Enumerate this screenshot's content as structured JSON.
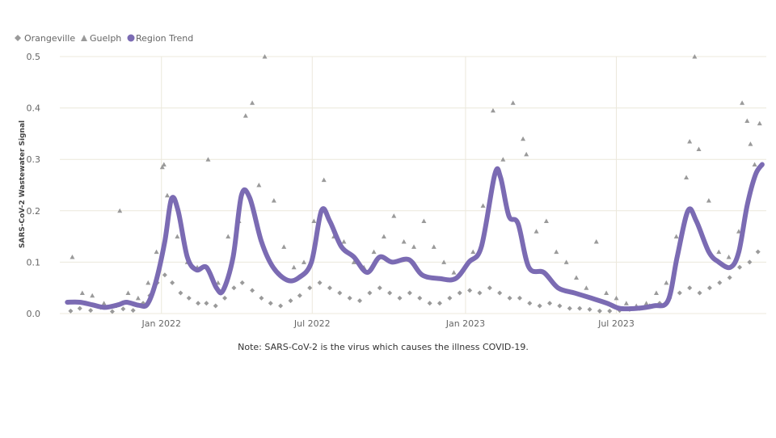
{
  "chart_data": {
    "type": "scatter",
    "ylabel": "SARS-CoV-2 Wastewater Signal",
    "xlabel": "",
    "ylim": [
      0,
      0.5
    ],
    "xlim": [
      "2021-09-01",
      "2023-12-28"
    ],
    "y_ticks": [
      "0.0",
      "0.1",
      "0.2",
      "0.3",
      "0.4",
      "0.5"
    ],
    "x_ticks": [
      {
        "date": "2022-01-01",
        "label": "Jan 2022"
      },
      {
        "date": "2022-07-01",
        "label": "Jul 2022"
      },
      {
        "date": "2023-01-01",
        "label": "Jan 2023"
      },
      {
        "date": "2023-07-01",
        "label": "Jul 2023"
      }
    ],
    "grid": true,
    "legend_position": "top-left",
    "note": "Note: SARS-CoV-2 is the virus which causes the illness COVID-19.",
    "colors": {
      "trend": "#7b6bb3",
      "markers": "#9a9a9a",
      "grid": "#ece8dc",
      "axis_text": "#666666"
    },
    "series": [
      {
        "name": "Orangeville",
        "marker": "diamond",
        "points": [
          [
            "2021-09-14",
            0.005
          ],
          [
            "2021-09-25",
            0.01
          ],
          [
            "2021-10-08",
            0.006
          ],
          [
            "2021-10-20",
            0.012
          ],
          [
            "2021-11-03",
            0.004
          ],
          [
            "2021-11-16",
            0.009
          ],
          [
            "2021-11-28",
            0.006
          ],
          [
            "2021-12-10",
            0.02
          ],
          [
            "2021-12-18",
            0.035
          ],
          [
            "2021-12-27",
            0.06
          ],
          [
            "2022-01-05",
            0.075
          ],
          [
            "2022-01-14",
            0.06
          ],
          [
            "2022-01-24",
            0.04
          ],
          [
            "2022-02-03",
            0.03
          ],
          [
            "2022-02-14",
            0.02
          ],
          [
            "2022-02-24",
            0.02
          ],
          [
            "2022-03-07",
            0.015
          ],
          [
            "2022-03-18",
            0.03
          ],
          [
            "2022-03-29",
            0.05
          ],
          [
            "2022-04-08",
            0.06
          ],
          [
            "2022-04-20",
            0.045
          ],
          [
            "2022-05-01",
            0.03
          ],
          [
            "2022-05-12",
            0.02
          ],
          [
            "2022-05-24",
            0.015
          ],
          [
            "2022-06-05",
            0.025
          ],
          [
            "2022-06-16",
            0.035
          ],
          [
            "2022-06-28",
            0.05
          ],
          [
            "2022-07-10",
            0.06
          ],
          [
            "2022-07-22",
            0.05
          ],
          [
            "2022-08-03",
            0.04
          ],
          [
            "2022-08-15",
            0.03
          ],
          [
            "2022-08-27",
            0.025
          ],
          [
            "2022-09-08",
            0.04
          ],
          [
            "2022-09-20",
            0.05
          ],
          [
            "2022-10-02",
            0.04
          ],
          [
            "2022-10-14",
            0.03
          ],
          [
            "2022-10-26",
            0.04
          ],
          [
            "2022-11-07",
            0.03
          ],
          [
            "2022-11-19",
            0.02
          ],
          [
            "2022-12-01",
            0.02
          ],
          [
            "2022-12-13",
            0.03
          ],
          [
            "2022-12-25",
            0.04
          ],
          [
            "2023-01-06",
            0.045
          ],
          [
            "2023-01-18",
            0.04
          ],
          [
            "2023-01-30",
            0.05
          ],
          [
            "2023-02-11",
            0.04
          ],
          [
            "2023-02-23",
            0.03
          ],
          [
            "2023-03-07",
            0.03
          ],
          [
            "2023-03-19",
            0.02
          ],
          [
            "2023-03-31",
            0.015
          ],
          [
            "2023-04-12",
            0.02
          ],
          [
            "2023-04-24",
            0.015
          ],
          [
            "2023-05-06",
            0.01
          ],
          [
            "2023-05-18",
            0.01
          ],
          [
            "2023-05-30",
            0.008
          ],
          [
            "2023-06-11",
            0.005
          ],
          [
            "2023-06-23",
            0.005
          ],
          [
            "2023-07-05",
            0.006
          ],
          [
            "2023-07-17",
            0.008
          ],
          [
            "2023-07-29",
            0.01
          ],
          [
            "2023-08-10",
            0.015
          ],
          [
            "2023-08-22",
            0.02
          ],
          [
            "2023-09-03",
            0.03
          ],
          [
            "2023-09-15",
            0.04
          ],
          [
            "2023-09-27",
            0.05
          ],
          [
            "2023-10-09",
            0.04
          ],
          [
            "2023-10-21",
            0.05
          ],
          [
            "2023-11-02",
            0.06
          ],
          [
            "2023-11-14",
            0.07
          ],
          [
            "2023-11-26",
            0.09
          ],
          [
            "2023-12-08",
            0.1
          ],
          [
            "2023-12-18",
            0.12
          ]
        ]
      },
      {
        "name": "Guelph",
        "marker": "triangle",
        "points": [
          [
            "2021-09-16",
            0.11
          ],
          [
            "2021-09-28",
            0.04
          ],
          [
            "2021-10-10",
            0.035
          ],
          [
            "2021-10-24",
            0.02
          ],
          [
            "2021-11-06",
            0.015
          ],
          [
            "2021-11-12",
            0.2
          ],
          [
            "2021-11-22",
            0.04
          ],
          [
            "2021-12-04",
            0.03
          ],
          [
            "2021-12-16",
            0.06
          ],
          [
            "2021-12-26",
            0.12
          ],
          [
            "2022-01-02",
            0.285
          ],
          [
            "2022-01-04",
            0.29
          ],
          [
            "2022-01-08",
            0.23
          ],
          [
            "2022-01-20",
            0.15
          ],
          [
            "2022-02-01",
            0.1
          ],
          [
            "2022-02-13",
            0.09
          ],
          [
            "2022-02-26",
            0.3
          ],
          [
            "2022-03-10",
            0.06
          ],
          [
            "2022-03-22",
            0.15
          ],
          [
            "2022-04-04",
            0.18
          ],
          [
            "2022-04-12",
            0.385
          ],
          [
            "2022-04-20",
            0.41
          ],
          [
            "2022-04-28",
            0.25
          ],
          [
            "2022-05-05",
            0.5
          ],
          [
            "2022-05-16",
            0.22
          ],
          [
            "2022-05-28",
            0.13
          ],
          [
            "2022-06-09",
            0.09
          ],
          [
            "2022-06-21",
            0.1
          ],
          [
            "2022-07-03",
            0.18
          ],
          [
            "2022-07-15",
            0.26
          ],
          [
            "2022-07-27",
            0.15
          ],
          [
            "2022-08-08",
            0.14
          ],
          [
            "2022-08-20",
            0.1
          ],
          [
            "2022-09-01",
            0.09
          ],
          [
            "2022-09-13",
            0.12
          ],
          [
            "2022-09-25",
            0.15
          ],
          [
            "2022-10-07",
            0.19
          ],
          [
            "2022-10-19",
            0.14
          ],
          [
            "2022-10-31",
            0.13
          ],
          [
            "2022-11-12",
            0.18
          ],
          [
            "2022-11-24",
            0.13
          ],
          [
            "2022-12-06",
            0.1
          ],
          [
            "2022-12-18",
            0.08
          ],
          [
            "2023-01-10",
            0.12
          ],
          [
            "2023-01-22",
            0.21
          ],
          [
            "2023-02-03",
            0.395
          ],
          [
            "2023-02-15",
            0.3
          ],
          [
            "2023-02-27",
            0.41
          ],
          [
            "2023-03-11",
            0.34
          ],
          [
            "2023-03-15",
            0.31
          ],
          [
            "2023-03-27",
            0.16
          ],
          [
            "2023-04-08",
            0.18
          ],
          [
            "2023-04-20",
            0.12
          ],
          [
            "2023-05-02",
            0.1
          ],
          [
            "2023-05-14",
            0.07
          ],
          [
            "2023-05-26",
            0.05
          ],
          [
            "2023-06-07",
            0.14
          ],
          [
            "2023-06-19",
            0.04
          ],
          [
            "2023-07-01",
            0.03
          ],
          [
            "2023-07-13",
            0.02
          ],
          [
            "2023-07-25",
            0.015
          ],
          [
            "2023-08-06",
            0.02
          ],
          [
            "2023-08-18",
            0.04
          ],
          [
            "2023-08-30",
            0.06
          ],
          [
            "2023-09-11",
            0.15
          ],
          [
            "2023-09-23",
            0.265
          ],
          [
            "2023-09-27",
            0.335
          ],
          [
            "2023-10-03",
            0.5
          ],
          [
            "2023-10-08",
            0.32
          ],
          [
            "2023-10-20",
            0.22
          ],
          [
            "2023-11-01",
            0.12
          ],
          [
            "2023-11-13",
            0.11
          ],
          [
            "2023-11-25",
            0.16
          ],
          [
            "2023-11-29",
            0.41
          ],
          [
            "2023-12-05",
            0.375
          ],
          [
            "2023-12-09",
            0.33
          ],
          [
            "2023-12-14",
            0.29
          ],
          [
            "2023-12-20",
            0.37
          ]
        ]
      },
      {
        "name": "Region Trend",
        "marker": "line",
        "points": [
          [
            "2021-09-10",
            0.022
          ],
          [
            "2021-09-25",
            0.022
          ],
          [
            "2021-10-10",
            0.017
          ],
          [
            "2021-10-25",
            0.012
          ],
          [
            "2021-11-10",
            0.017
          ],
          [
            "2021-11-20",
            0.022
          ],
          [
            "2021-12-05",
            0.016
          ],
          [
            "2021-12-15",
            0.018
          ],
          [
            "2021-12-25",
            0.06
          ],
          [
            "2022-01-05",
            0.14
          ],
          [
            "2022-01-13",
            0.223
          ],
          [
            "2022-01-21",
            0.2
          ],
          [
            "2022-02-01",
            0.11
          ],
          [
            "2022-02-12",
            0.085
          ],
          [
            "2022-02-24",
            0.09
          ],
          [
            "2022-03-08",
            0.05
          ],
          [
            "2022-03-16",
            0.045
          ],
          [
            "2022-03-28",
            0.11
          ],
          [
            "2022-04-07",
            0.23
          ],
          [
            "2022-04-17",
            0.225
          ],
          [
            "2022-05-01",
            0.14
          ],
          [
            "2022-05-15",
            0.09
          ],
          [
            "2022-06-01",
            0.065
          ],
          [
            "2022-06-15",
            0.07
          ],
          [
            "2022-06-30",
            0.1
          ],
          [
            "2022-07-12",
            0.2
          ],
          [
            "2022-07-22",
            0.18
          ],
          [
            "2022-08-05",
            0.13
          ],
          [
            "2022-08-20",
            0.11
          ],
          [
            "2022-09-05",
            0.08
          ],
          [
            "2022-09-20",
            0.11
          ],
          [
            "2022-10-05",
            0.1
          ],
          [
            "2022-10-25",
            0.105
          ],
          [
            "2022-11-10",
            0.075
          ],
          [
            "2022-12-01",
            0.068
          ],
          [
            "2022-12-20",
            0.068
          ],
          [
            "2023-01-05",
            0.1
          ],
          [
            "2023-01-20",
            0.13
          ],
          [
            "2023-02-05",
            0.27
          ],
          [
            "2023-02-12",
            0.265
          ],
          [
            "2023-02-22",
            0.19
          ],
          [
            "2023-03-05",
            0.175
          ],
          [
            "2023-03-18",
            0.09
          ],
          [
            "2023-04-05",
            0.08
          ],
          [
            "2023-04-22",
            0.05
          ],
          [
            "2023-05-12",
            0.04
          ],
          [
            "2023-06-01",
            0.03
          ],
          [
            "2023-06-20",
            0.02
          ],
          [
            "2023-07-05",
            0.01
          ],
          [
            "2023-07-25",
            0.01
          ],
          [
            "2023-08-15",
            0.015
          ],
          [
            "2023-09-01",
            0.025
          ],
          [
            "2023-09-12",
            0.11
          ],
          [
            "2023-09-25",
            0.2
          ],
          [
            "2023-10-05",
            0.18
          ],
          [
            "2023-10-20",
            0.12
          ],
          [
            "2023-11-01",
            0.1
          ],
          [
            "2023-11-15",
            0.09
          ],
          [
            "2023-11-25",
            0.12
          ],
          [
            "2023-12-05",
            0.21
          ],
          [
            "2023-12-15",
            0.27
          ],
          [
            "2023-12-23",
            0.29
          ]
        ]
      }
    ]
  }
}
